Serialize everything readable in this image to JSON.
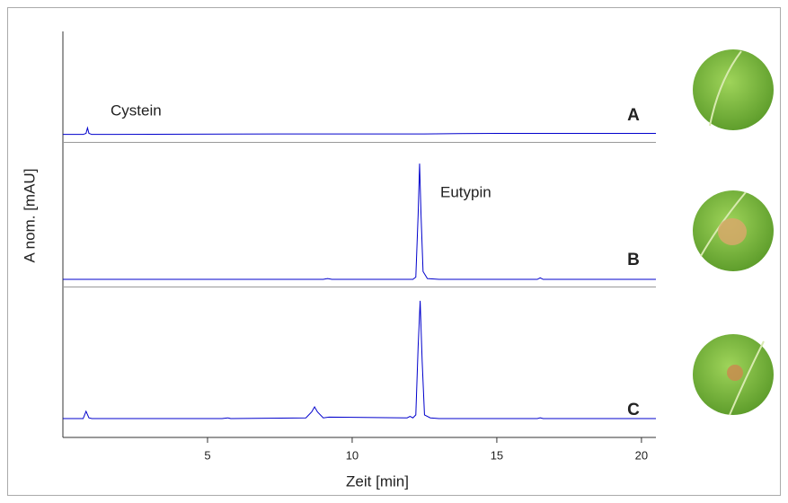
{
  "chart_data": [
    {
      "type": "line",
      "label": "A",
      "annotation": "Cystein",
      "color": "#0000cc",
      "x": [
        0,
        0.7,
        0.8,
        0.85,
        0.9,
        1.0,
        7.5,
        10,
        12.5,
        15,
        20.5
      ],
      "values": [
        6,
        6,
        7,
        12,
        7,
        6,
        6.5,
        6.5,
        6.5,
        7,
        7
      ],
      "xlim": [
        0,
        20.5
      ],
      "ylim": [
        0,
        100
      ]
    },
    {
      "type": "line",
      "label": "B",
      "annotation": "Eutypin",
      "ylabel": "A nom. [mAU]",
      "color": "#0000cc",
      "x": [
        0,
        9,
        9.15,
        9.3,
        12.1,
        12.2,
        12.28,
        12.33,
        12.38,
        12.45,
        12.6,
        13,
        16.4,
        16.5,
        16.6,
        20.5
      ],
      "values": [
        4.4,
        4.4,
        5,
        4.4,
        4.4,
        6,
        50,
        86,
        50,
        10,
        5,
        4.4,
        4.4,
        5.5,
        4.4,
        4.4
      ],
      "xlim": [
        0,
        20.5
      ],
      "ylim": [
        0,
        100
      ]
    },
    {
      "type": "line",
      "label": "C",
      "xlabel": "Zeit [min]",
      "color": "#0000cc",
      "x": [
        0,
        0.7,
        0.8,
        0.9,
        1.0,
        5.5,
        5.7,
        5.8,
        8.4,
        8.6,
        8.7,
        8.8,
        9.0,
        9.2,
        11.9,
        12.0,
        12.1,
        12.2,
        12.28,
        12.35,
        12.42,
        12.5,
        12.7,
        13,
        16.4,
        16.5,
        16.6,
        20.5
      ],
      "values": [
        11.5,
        11.5,
        16.4,
        12,
        11.5,
        11.5,
        12,
        11.5,
        12,
        16,
        19.4,
        16,
        12,
        12.5,
        12,
        13,
        12,
        14,
        60,
        91,
        50,
        14,
        12,
        11.5,
        11.5,
        12,
        11.5,
        11.5
      ],
      "xlim": [
        0,
        20.5
      ],
      "ylim": [
        0,
        100
      ],
      "xticks": [
        5,
        10,
        15,
        20
      ]
    }
  ]
}
